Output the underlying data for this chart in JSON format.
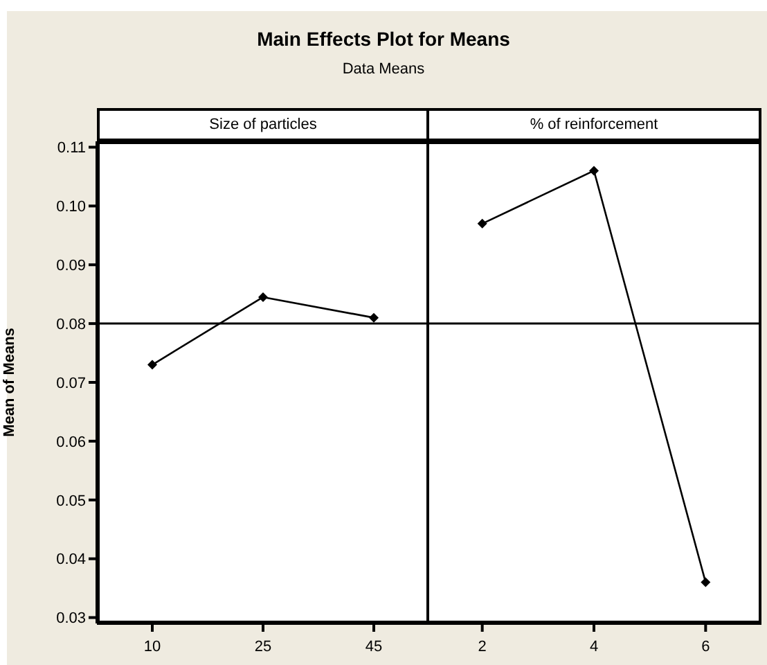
{
  "chart_data": [
    {
      "type": "line",
      "title": "Size of particles",
      "annotations": [
        "Main Effects Plot for Means",
        "Data Means"
      ],
      "ylabel": "Mean of Means",
      "categories": [
        "10",
        "25",
        "45"
      ],
      "series": [
        {
          "color": "#000000",
          "values": [
            0.073,
            0.0845,
            0.081
          ]
        }
      ],
      "ylim": [
        0.029,
        0.111
      ],
      "yticks": [
        0.03,
        0.04,
        0.05,
        0.06,
        0.07,
        0.08,
        0.09,
        {
          "value": 0.1,
          "label": "0.10"
        },
        0.11
      ],
      "marker": "diamond",
      "ref_lines": [
        {
          "axis": "y",
          "value": 0.08,
          "color": "#000000"
        }
      ]
    },
    {
      "type": "line",
      "title": "% of reinforcement",
      "categories": [
        "2",
        "4",
        "6"
      ],
      "series": [
        {
          "color": "#000000",
          "values": [
            0.097,
            0.106,
            0.036
          ]
        }
      ],
      "ylim": [
        0.029,
        0.111
      ],
      "tick_labels": "x",
      "marker": "diamond",
      "ref_lines": [
        {
          "axis": "y",
          "value": 0.08,
          "color": "#000000"
        }
      ]
    }
  ]
}
